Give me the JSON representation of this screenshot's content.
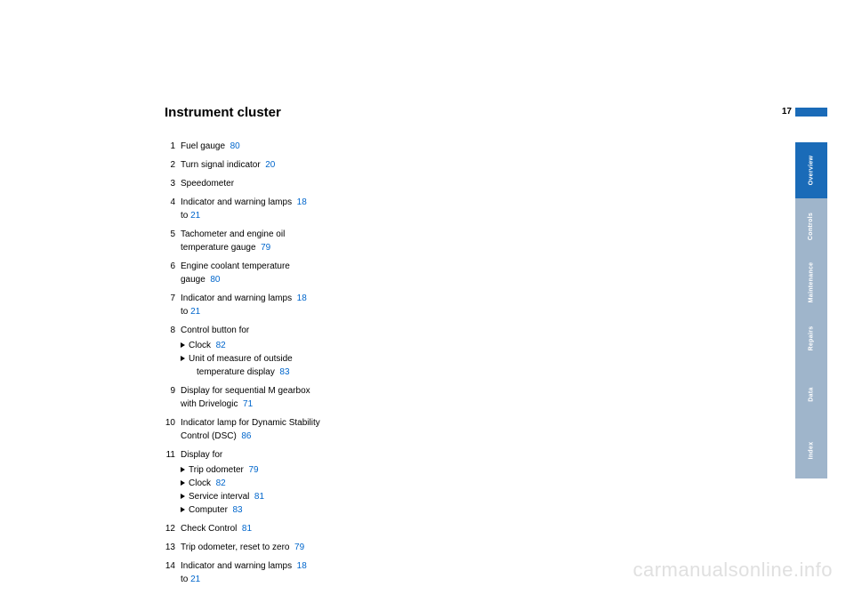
{
  "page_number": "17",
  "title": "Instrument cluster",
  "watermark": "carmanualsonline.info",
  "colors": {
    "link": "#0066cc",
    "tab_active_bg": "#1a6bb8",
    "tab_inactive_bg": "#9fb5cb",
    "tab_text": "#ffffff",
    "watermark": "#e0e0e0",
    "text": "#000000",
    "page_bg": "#ffffff"
  },
  "typography": {
    "title_fontsize": 15,
    "body_fontsize": 10,
    "tab_fontsize": 7,
    "watermark_fontsize": 22,
    "font_family": "Arial, Helvetica, sans-serif"
  },
  "tabs": [
    {
      "label": "Overview",
      "active": true
    },
    {
      "label": "Controls",
      "active": false
    },
    {
      "label": "Maintenance",
      "active": false
    },
    {
      "label": "Repairs",
      "active": false
    },
    {
      "label": "Data",
      "active": false
    },
    {
      "label": "Index",
      "active": false
    }
  ],
  "items": [
    {
      "n": "1",
      "text": "Fuel gauge",
      "ref": "80"
    },
    {
      "n": "2",
      "text": "Turn signal indicator",
      "ref": "20"
    },
    {
      "n": "3",
      "text": "Speedometer"
    },
    {
      "n": "4",
      "text": "Indicator and warning lamps",
      "ref": "18",
      "text2": "to ",
      "ref2": "21"
    },
    {
      "n": "5",
      "text": "Tachometer and engine oil",
      "text_line2": "temperature gauge",
      "ref_line2": "79"
    },
    {
      "n": "6",
      "text": "Engine coolant temperature",
      "text_line2": "gauge",
      "ref_line2": "80"
    },
    {
      "n": "7",
      "text": "Indicator and warning lamps",
      "ref": "18",
      "text2": "to ",
      "ref2": "21"
    },
    {
      "n": "8",
      "text": "Control button for",
      "subs": [
        {
          "text": "Clock",
          "ref": "82"
        },
        {
          "text": "Unit of measure of outside",
          "text_line2": "temperature display",
          "ref_line2": "83"
        }
      ]
    },
    {
      "n": "9",
      "text": "Display for sequential M gearbox",
      "text_line2": "with Drivelogic",
      "ref_line2": "71"
    },
    {
      "n": "10",
      "text": "Indicator lamp for Dynamic Stability",
      "text_line2": "Control (DSC)",
      "ref_line2": "86"
    },
    {
      "n": "11",
      "text": "Display for",
      "subs": [
        {
          "text": "Trip odometer",
          "ref": "79"
        },
        {
          "text": "Clock",
          "ref": "82"
        },
        {
          "text": "Service interval",
          "ref": "81"
        },
        {
          "text": "Computer",
          "ref": "83"
        }
      ]
    },
    {
      "n": "12",
      "text": "Check Control",
      "ref": "81"
    },
    {
      "n": "13",
      "text": "Trip odometer, reset to zero",
      "ref": "79"
    },
    {
      "n": "14",
      "text": "Indicator and warning lamps",
      "ref": "18",
      "text2": "to ",
      "ref2": "21"
    }
  ]
}
